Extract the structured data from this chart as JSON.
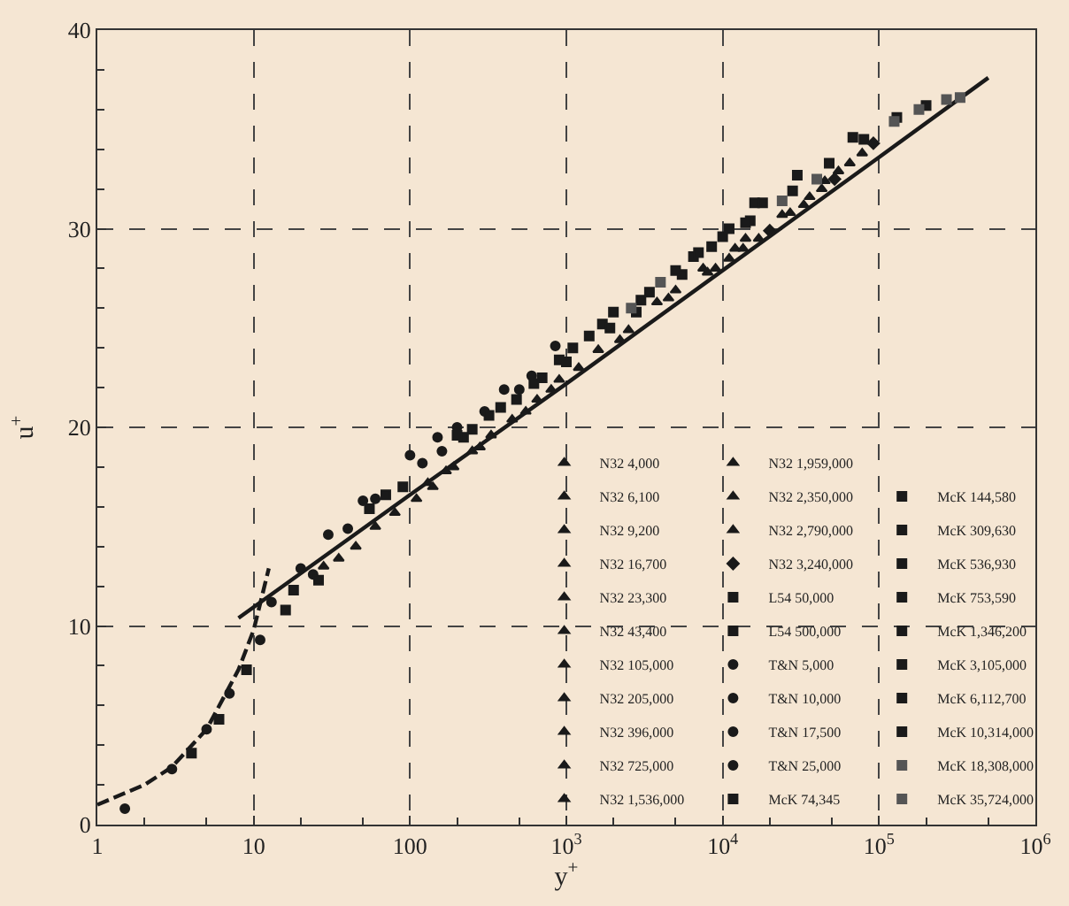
{
  "chart_data": {
    "type": "scatter",
    "xlabel": "y$^{+}$",
    "ylabel": "u$^{+}$",
    "log": "x",
    "xlim": [
      1,
      1000000
    ],
    "ylim": [
      0,
      40
    ],
    "xticks": [
      1,
      10,
      100,
      {
        "value": 1000,
        "label": "10$^{3}$"
      },
      {
        "value": 10000,
        "label": "10$^{4}$"
      },
      {
        "value": 100000,
        "label": "10$^{5}$"
      },
      {
        "value": 1000000,
        "label": "10$^{6}$"
      }
    ],
    "yticks": [
      0,
      10,
      20,
      30,
      40
    ],
    "grid": true,
    "legend": "bottom right",
    "series": [
      {
        "type": "line",
        "line_style": "dashed",
        "color": "#1a1a1a",
        "marker": "none",
        "x": [
          1,
          2,
          3,
          5,
          8,
          10,
          12.5
        ],
        "values": [
          1,
          2,
          2.9,
          4.8,
          7.8,
          9.8,
          12.9
        ]
      },
      {
        "type": "line",
        "line_style": "solid",
        "color": "#1a1a1a",
        "marker": "none",
        "x": [
          8,
          100,
          1000,
          10000,
          100000,
          500000
        ],
        "values": [
          10.4,
          16.6,
          22.2,
          27.9,
          33.6,
          37.6
        ]
      },
      {
        "name": "N32 4,000",
        "marker": "triangle",
        "color": "#1a1a1a",
        "x": [
          28,
          60,
          130
        ],
        "values": [
          13.0,
          15.0,
          17.2
        ]
      },
      {
        "name": "N32 6,100",
        "marker": "triangle",
        "color": "#1a1a1a",
        "x": [
          35,
          80,
          170
        ],
        "values": [
          13.4,
          15.7,
          17.8
        ]
      },
      {
        "name": "N32 9,200",
        "marker": "triangle",
        "color": "#1a1a1a",
        "x": [
          45,
          110,
          250
        ],
        "values": [
          14.0,
          16.4,
          18.8
        ]
      },
      {
        "name": "N32 16,700",
        "marker": "triangle",
        "color": "#1a1a1a",
        "x": [
          140,
          330,
          650
        ],
        "values": [
          17.0,
          19.6,
          21.4
        ]
      },
      {
        "name": "N32 23,300",
        "marker": "triangle",
        "color": "#1a1a1a",
        "x": [
          190,
          450,
          900
        ],
        "values": [
          18.0,
          20.4,
          22.4
        ]
      },
      {
        "name": "N32 43,400",
        "marker": "triangle",
        "color": "#1a1a1a",
        "x": [
          280,
          800,
          1600
        ],
        "values": [
          19.0,
          21.9,
          23.9
        ]
      },
      {
        "name": "N32 105,000",
        "marker": "triangle",
        "color": "#1a1a1a",
        "x": [
          550,
          2200,
          3800
        ],
        "values": [
          20.8,
          24.4,
          26.3
        ]
      },
      {
        "name": "N32 205,000",
        "marker": "triangle",
        "color": "#1a1a1a",
        "x": [
          1200,
          4500,
          7500
        ],
        "values": [
          23.0,
          26.5,
          28.0
        ]
      },
      {
        "name": "N32 396,000",
        "marker": "triangle",
        "color": "#1a1a1a",
        "x": [
          2500,
          8000,
          14000
        ],
        "values": [
          24.9,
          27.8,
          29.5
        ]
      },
      {
        "name": "N32 725,000",
        "marker": "triangle",
        "color": "#1a1a1a",
        "x": [
          5000,
          12000,
          24000
        ],
        "values": [
          26.9,
          29.0,
          30.7
        ]
      },
      {
        "name": "N32 1,536,000",
        "marker": "triangle",
        "color": "#1a1a1a",
        "x": [
          9000,
          27000,
          45000
        ],
        "values": [
          28.0,
          30.8,
          32.4
        ]
      },
      {
        "name": "N32 1,959,000",
        "marker": "triangle",
        "color": "#1a1a1a",
        "x": [
          11000,
          33000,
          55000
        ],
        "values": [
          28.5,
          31.2,
          32.9
        ]
      },
      {
        "name": "N32 2,350,000",
        "marker": "triangle",
        "color": "#1a1a1a",
        "x": [
          13500,
          36000,
          65000
        ],
        "values": [
          29.0,
          31.6,
          33.3
        ]
      },
      {
        "name": "N32 2,790,000",
        "marker": "triangle",
        "color": "#1a1a1a",
        "x": [
          17000,
          43000,
          78000
        ],
        "values": [
          29.5,
          32.0,
          33.8
        ]
      },
      {
        "name": "N32 3,240,000",
        "marker": "diamond",
        "color": "#1a1a1a",
        "x": [
          20000,
          52000,
          92000
        ],
        "values": [
          29.9,
          32.5,
          34.3
        ]
      },
      {
        "name": "L54 50,000",
        "marker": "square",
        "color": "#1a1a1a",
        "x": [
          380,
          1100,
          2000
        ],
        "values": [
          21.0,
          24.0,
          25.8
        ]
      },
      {
        "name": "L54 500,000",
        "marker": "square",
        "color": "#1a1a1a",
        "x": [
          3000,
          10000,
          18000
        ],
        "values": [
          26.4,
          29.6,
          31.3
        ]
      },
      {
        "name": "T&N 5,000",
        "marker": "circle",
        "color": "#1a1a1a",
        "x": [
          1.5,
          5,
          13,
          30,
          50,
          100,
          150
        ],
        "values": [
          0.8,
          4.8,
          11.2,
          14.6,
          16.3,
          18.6,
          19.5
        ]
      },
      {
        "name": "T&N 10,000",
        "marker": "circle",
        "color": "#1a1a1a",
        "x": [
          3,
          7,
          11,
          20,
          60,
          200,
          400
        ],
        "values": [
          2.8,
          6.6,
          9.3,
          12.9,
          16.4,
          20.0,
          21.9
        ]
      },
      {
        "name": "T&N 17,500",
        "marker": "circle",
        "color": "#1a1a1a",
        "x": [
          24,
          120,
          300,
          600
        ],
        "values": [
          12.6,
          18.2,
          20.8,
          22.6
        ]
      },
      {
        "name": "T&N 25,000",
        "marker": "circle",
        "color": "#1a1a1a",
        "x": [
          40,
          160,
          500,
          850
        ],
        "values": [
          14.9,
          18.8,
          21.9,
          24.1
        ]
      },
      {
        "name": "McK 74,345",
        "marker": "square",
        "color": "#1a1a1a",
        "x": [
          4,
          6,
          18,
          250,
          900,
          1700
        ],
        "values": [
          3.6,
          5.3,
          11.8,
          19.9,
          23.4,
          25.2
        ]
      },
      {
        "name": "McK 144,580",
        "marker": "square",
        "color": "#1a1a1a",
        "x": [
          9,
          16,
          90,
          700,
          3400
        ],
        "values": [
          7.8,
          10.8,
          17.0,
          22.5,
          26.8
        ]
      },
      {
        "name": "McK 309,630",
        "marker": "square",
        "color": "#1a1a1a",
        "x": [
          26,
          220,
          2800,
          6500
        ],
        "values": [
          12.3,
          19.5,
          25.8,
          28.6
        ]
      },
      {
        "name": "McK 536,930",
        "marker": "square",
        "color": "#1a1a1a",
        "x": [
          70,
          480,
          5500,
          11000
        ],
        "values": [
          16.6,
          21.4,
          27.7,
          30.0
        ]
      },
      {
        "name": "McK 753,590",
        "marker": "square",
        "color": "#1a1a1a",
        "x": [
          55,
          1000,
          8500,
          16000
        ],
        "values": [
          15.9,
          23.3,
          29.1,
          31.3
        ]
      },
      {
        "name": "McK 1,346,200",
        "marker": "square",
        "color": "#1a1a1a",
        "x": [
          200,
          1900,
          15000,
          30000
        ],
        "values": [
          19.6,
          25.0,
          30.4,
          32.7
        ]
      },
      {
        "name": "McK 3,105,000",
        "marker": "square",
        "color": "#1a1a1a",
        "x": [
          320,
          5000,
          28000,
          68000
        ],
        "values": [
          20.6,
          27.9,
          31.9,
          34.6
        ]
      },
      {
        "name": "McK 6,112,700",
        "marker": "square",
        "color": "#1a1a1a",
        "x": [
          620,
          7000,
          48000,
          130000
        ],
        "values": [
          22.2,
          28.8,
          33.3,
          35.6
        ]
      },
      {
        "name": "McK 10,314,000",
        "marker": "square",
        "color": "#1a1a1a",
        "x": [
          1400,
          14000,
          80000,
          200000
        ],
        "values": [
          24.6,
          30.3,
          34.5,
          36.2
        ]
      },
      {
        "name": "McK 18,308,000",
        "marker": "square",
        "color": "#555555",
        "x": [
          2600,
          24000,
          125000,
          270000
        ],
        "values": [
          26.0,
          31.4,
          35.4,
          36.5
        ]
      },
      {
        "name": "McK 35,724,000",
        "marker": "square",
        "color": "#555555",
        "x": [
          4000,
          40000,
          180000,
          330000
        ],
        "values": [
          27.3,
          32.5,
          36.0,
          36.6
        ]
      }
    ]
  }
}
